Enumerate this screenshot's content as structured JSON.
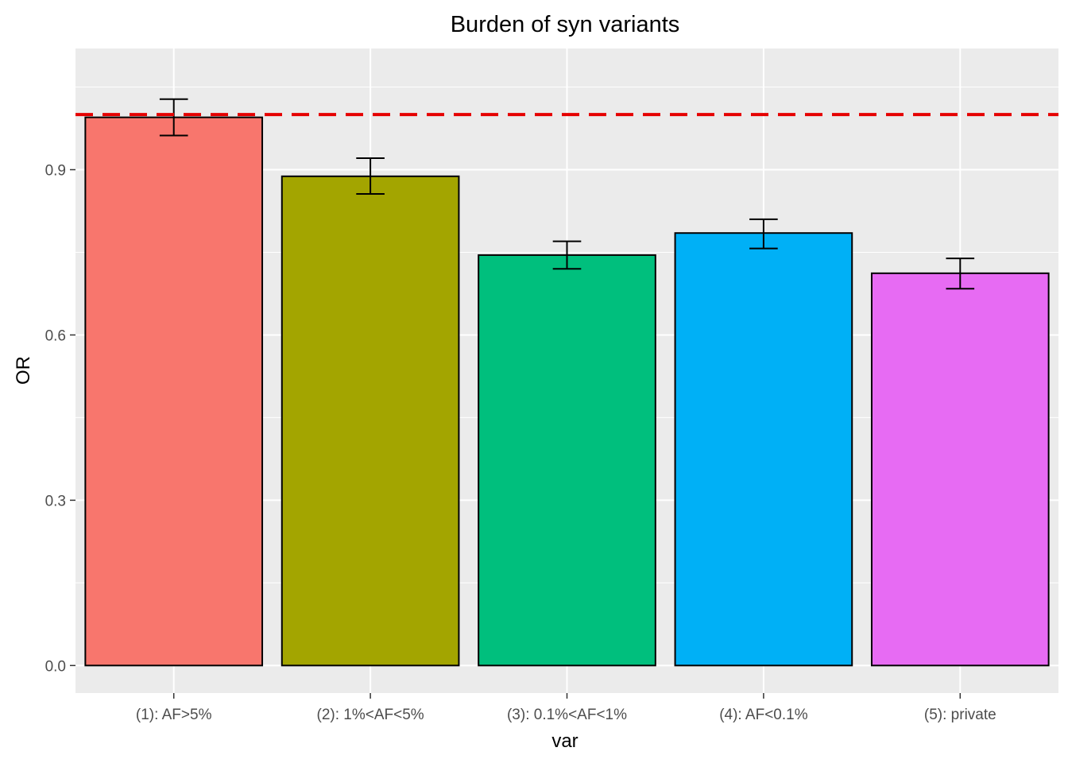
{
  "chart_data": {
    "type": "bar",
    "title": "Burden of syn variants",
    "xlabel": "var",
    "ylabel": "OR",
    "categories": [
      "(1): AF>5%",
      "(2): 1%<AF<5%",
      "(3): 0.1%<AF<1%",
      "(4): AF<0.1%",
      "(5): private"
    ],
    "values": [
      0.995,
      0.888,
      0.745,
      0.785,
      0.712
    ],
    "error_low": [
      0.962,
      0.856,
      0.72,
      0.757,
      0.684
    ],
    "error_high": [
      1.028,
      0.921,
      0.77,
      0.81,
      0.739
    ],
    "colors": [
      "#F8766D",
      "#A3A500",
      "#00BF7D",
      "#00B0F6",
      "#E76BF3"
    ],
    "reference_line": {
      "y": 1.0,
      "color": "#E50000",
      "style": "dashed"
    },
    "ylim": [
      -0.05,
      1.12
    ],
    "yticks": [
      0.0,
      0.3,
      0.6,
      0.9
    ],
    "ytick_labels": [
      "0.0",
      "0.3",
      "0.6",
      "0.9"
    ],
    "grid": true,
    "legend": "none",
    "panel_background": "#EBEBEB"
  }
}
